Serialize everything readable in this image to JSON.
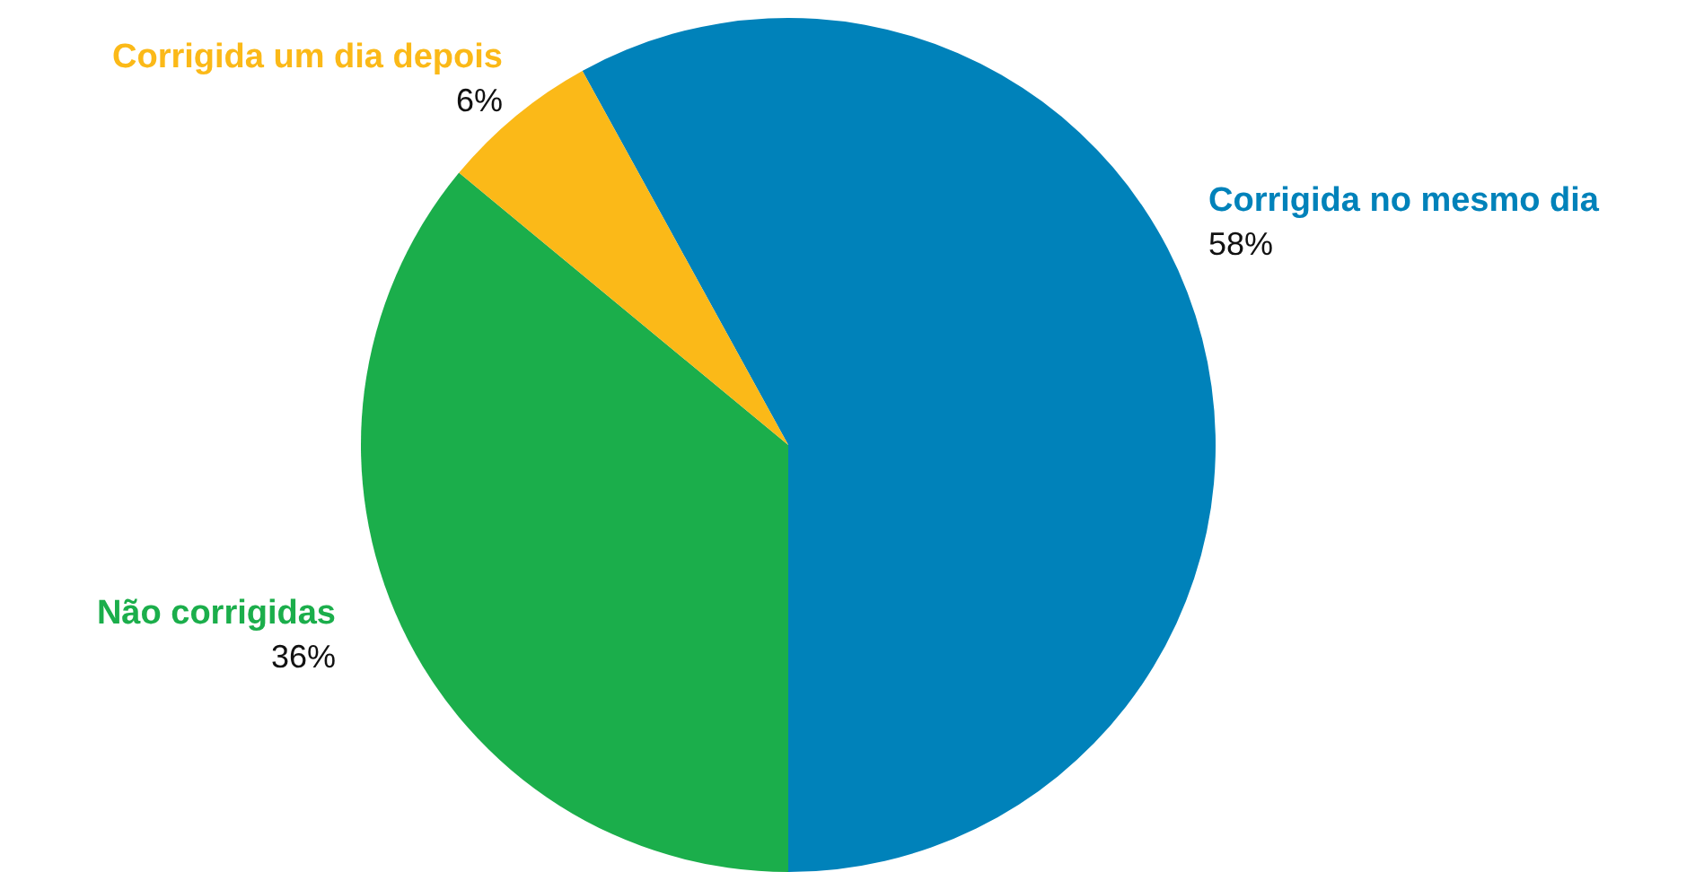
{
  "chart_data": {
    "type": "pie",
    "categories": [
      "Corrigida no mesmo dia",
      "Não corrigidas",
      "Corrigida um dia depois"
    ],
    "values": [
      58,
      36,
      6
    ],
    "value_labels": [
      "58%",
      "36%",
      "6%"
    ],
    "colors": [
      "#0082ba",
      "#1bae4b",
      "#fbb918"
    ],
    "legend": false
  }
}
